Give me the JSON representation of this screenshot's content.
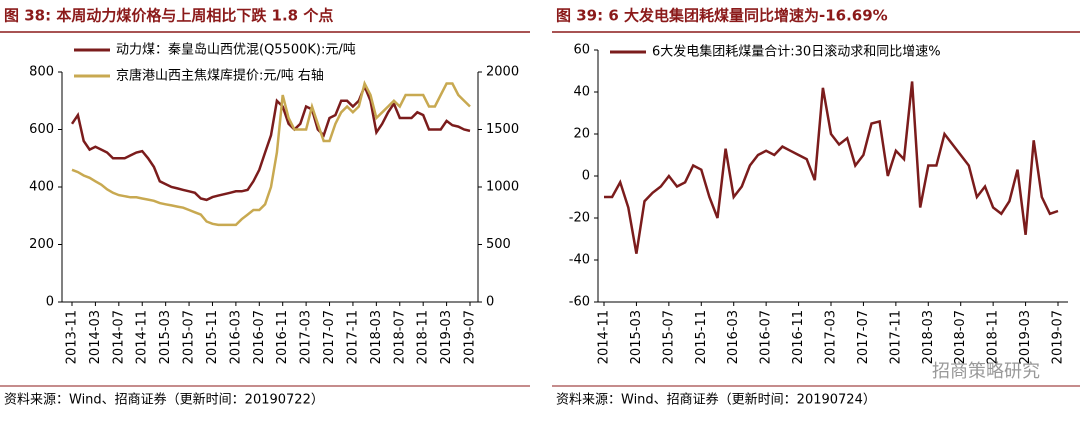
{
  "chart_data": [
    {
      "type": "line",
      "title": "图 38: 本周动力煤价格与上周相比下跌 1.8 个点",
      "source": "资料来源：Wind、招商证券（更新时间：20190722）",
      "categories": [
        "2013-11",
        null,
        null,
        null,
        "2014-03",
        null,
        null,
        null,
        "2014-07",
        null,
        null,
        null,
        "2014-11",
        null,
        null,
        null,
        "2015-03",
        null,
        null,
        null,
        "2015-07",
        null,
        null,
        null,
        "2015-11",
        null,
        null,
        null,
        "2016-03",
        null,
        null,
        null,
        "2016-07",
        null,
        null,
        null,
        "2016-11",
        null,
        null,
        null,
        "2017-03",
        null,
        null,
        null,
        "2017-07",
        null,
        null,
        null,
        "2017-11",
        null,
        null,
        null,
        "2018-03",
        null,
        null,
        null,
        "2018-07",
        null,
        null,
        null,
        "2018-11",
        null,
        null,
        null,
        "2019-03",
        null,
        null,
        null,
        "2019-07"
      ],
      "series": [
        {
          "name": "动力煤：秦皇岛山西优混(Q5500K):元/吨",
          "color": "#7b1c1c",
          "values": [
            620,
            650,
            560,
            530,
            540,
            530,
            520,
            500,
            500,
            500,
            510,
            520,
            525,
            500,
            470,
            420,
            410,
            400,
            395,
            390,
            385,
            380,
            360,
            355,
            365,
            370,
            375,
            380,
            385,
            385,
            390,
            420,
            460,
            520,
            580,
            700,
            680,
            620,
            600,
            620,
            680,
            670,
            600,
            580,
            640,
            650,
            700,
            700,
            680,
            700,
            750,
            700,
            590,
            620,
            660,
            690,
            640,
            640,
            640,
            660,
            650,
            600,
            600,
            600,
            630,
            615,
            610,
            600,
            595
          ]
        },
        {
          "name": "京唐港山西主焦煤库提价:元/吨 右轴",
          "color": "#c8a951",
          "axis": "y2",
          "values": [
            1150,
            1130,
            1100,
            1080,
            1050,
            1020,
            980,
            950,
            930,
            920,
            910,
            910,
            900,
            890,
            880,
            860,
            850,
            840,
            830,
            820,
            800,
            780,
            760,
            700,
            680,
            670,
            670,
            670,
            670,
            720,
            760,
            800,
            800,
            850,
            1000,
            1300,
            1800,
            1600,
            1500,
            1500,
            1500,
            1700,
            1550,
            1400,
            1400,
            1550,
            1650,
            1700,
            1650,
            1700,
            1900,
            1800,
            1600,
            1650,
            1700,
            1750,
            1700,
            1800,
            1800,
            1800,
            1800,
            1700,
            1700,
            1800,
            1900,
            1900,
            1800,
            1750,
            1700
          ]
        }
      ],
      "ylim": [
        0,
        800
      ],
      "yticks": [
        0,
        200,
        400,
        600,
        800
      ],
      "y2lim": [
        0,
        2000
      ],
      "y2ticks": [
        0,
        500,
        1000,
        1500,
        2000
      ],
      "legend": "upper left"
    },
    {
      "type": "line",
      "title": "图 39: 6 大发电集团耗煤量同比增速为-16.69%",
      "source": "资料来源：Wind、招商证券（更新时间：20190724）",
      "watermark": "招商策略研究",
      "categories": [
        "2014-11",
        null,
        null,
        null,
        "2015-03",
        null,
        null,
        null,
        "2015-07",
        null,
        null,
        null,
        "2015-11",
        null,
        null,
        null,
        "2016-03",
        null,
        null,
        null,
        "2016-07",
        null,
        null,
        null,
        "2016-11",
        null,
        null,
        null,
        "2017-03",
        null,
        null,
        null,
        "2017-07",
        null,
        null,
        null,
        "2017-11",
        null,
        null,
        null,
        "2018-03",
        null,
        null,
        null,
        "2018-07",
        null,
        null,
        null,
        "2018-11",
        null,
        null,
        null,
        "2019-03",
        null,
        null,
        null,
        "2019-07"
      ],
      "series": [
        {
          "name": "6大发电集团耗煤量合计:30日滚动求和同比增速%",
          "color": "#7b1c1c",
          "values": [
            -10,
            -10,
            -3,
            -15,
            -37,
            -12,
            -8,
            -5,
            0,
            -5,
            -3,
            5,
            3,
            -10,
            -20,
            13,
            -10,
            -5,
            5,
            10,
            12,
            10,
            14,
            12,
            10,
            8,
            -2,
            42,
            20,
            15,
            18,
            5,
            10,
            25,
            26,
            0,
            12,
            8,
            45,
            -15,
            5,
            5,
            20,
            15,
            10,
            5,
            -10,
            -5,
            -15,
            -18,
            -12,
            3,
            -28,
            17,
            -10,
            -18,
            -16.69
          ]
        }
      ],
      "ylim": [
        -60,
        60
      ],
      "yticks": [
        -60,
        -40,
        -20,
        0,
        20,
        40,
        60
      ],
      "legend": "upper left"
    }
  ]
}
